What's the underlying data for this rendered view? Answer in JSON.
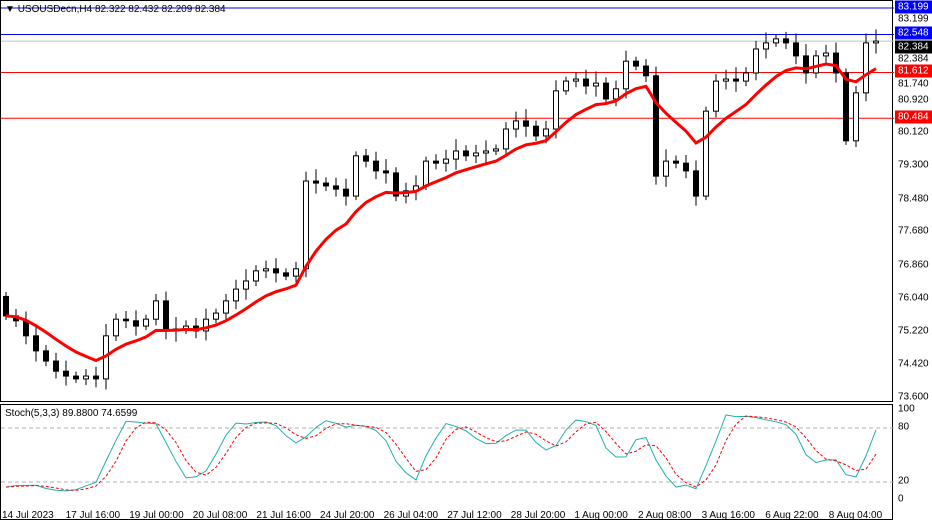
{
  "header": {
    "symbol": "USOUSDecn,H4",
    "ohlc": "82.322 82.432 82.209 82.384"
  },
  "price_axis": {
    "ticks": [
      "83.199",
      "82.384",
      "81.740",
      "80.920",
      "80.120",
      "79.300",
      "78.480",
      "77.680",
      "76.860",
      "76.040",
      "75.220",
      "74.420",
      "73.600"
    ],
    "tick_values": [
      83.199,
      82.384,
      81.74,
      80.92,
      80.12,
      79.3,
      78.48,
      77.68,
      76.86,
      76.04,
      75.22,
      74.42,
      73.6
    ],
    "range": [
      73.6,
      83.199
    ]
  },
  "levels": [
    {
      "label": "83.199",
      "value": 83.199,
      "color": "#0000ff"
    },
    {
      "label": "82.548",
      "value": 82.548,
      "color": "#0000ff"
    },
    {
      "label": "82.384",
      "value": 82.384,
      "color": "#000000",
      "line": "#c0c0c0"
    },
    {
      "label": "81.612",
      "value": 81.612,
      "color": "#ff0000"
    },
    {
      "label": "80.484",
      "value": 80.484,
      "color": "#ff0000"
    }
  ],
  "candles": {
    "first_open": 76.1,
    "closes": [
      75.62,
      75.5,
      75.13,
      74.76,
      74.51,
      74.26,
      74.14,
      74.07,
      74.14,
      74.07,
      75.13,
      75.54,
      75.5,
      75.37,
      75.54,
      75.99,
      75.25,
      75.3,
      75.37,
      75.25,
      75.54,
      75.69,
      75.99,
      76.28,
      76.48,
      76.73,
      76.78,
      76.68,
      76.6,
      76.78,
      78.94,
      78.89,
      78.82,
      78.74,
      78.57,
      79.56,
      79.43,
      79.19,
      79.14,
      78.57,
      78.7,
      78.82,
      79.43,
      79.38,
      79.48,
      79.68,
      79.56,
      79.63,
      79.68,
      79.73,
      80.22,
      80.42,
      80.29,
      80.05,
      80.22,
      81.16,
      81.4,
      81.45,
      81.28,
      81.35,
      80.96,
      81.21,
      81.89,
      81.77,
      81.53,
      79.06,
      79.43,
      79.38,
      79.19,
      78.57,
      80.66,
      81.4,
      81.45,
      81.4,
      81.6,
      82.19,
      82.34,
      82.44,
      82.34,
      82.02,
      81.6,
      82.02,
      82.09,
      81.6,
      79.93,
      81.11,
      82.34,
      82.384
    ]
  },
  "moving_average": {
    "color": "#ff0000"
  },
  "stochastic": {
    "label": "Stoch(5,3,3)",
    "main": "89.8800",
    "signal": "74.6599",
    "main_color": "#20b2aa",
    "signal_color": "#ff0000",
    "levels": [
      "100",
      "80",
      "20",
      "0"
    ]
  },
  "time_axis": [
    "14 Jul 2023",
    "17 Jul 16:00",
    "19 Jul 00:00",
    "20 Jul 08:00",
    "21 Jul 16:00",
    "24 Jul 20:00",
    "26 Jul 04:00",
    "27 Jul 12:00",
    "28 Jul 20:00",
    "1 Aug 00:00",
    "2 Aug 08:00",
    "3 Aug 16:00",
    "6 Aug 22:00",
    "8 Aug 04:00"
  ]
}
